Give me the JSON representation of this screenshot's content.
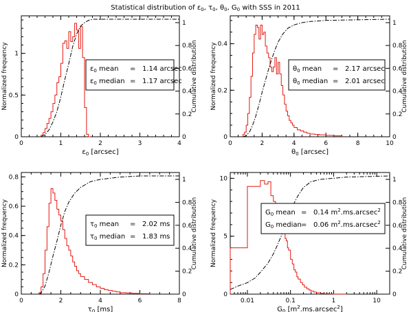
{
  "figure": {
    "title_parts": [
      "Statistical distribution of ε",
      "0",
      ", τ",
      "0",
      ", θ",
      "0",
      ", G",
      "0",
      " with SSS in 2011"
    ]
  },
  "chart_data": [
    {
      "type": "bar",
      "id": "eps",
      "xscale": "linear",
      "xlim": [
        0,
        4
      ],
      "ylim": [
        0,
        1.45
      ],
      "y2lim": [
        0,
        1.06
      ],
      "xticks": [
        0,
        1,
        2,
        3,
        4
      ],
      "xminor": 0.2,
      "yticks": [
        0,
        0.5,
        1
      ],
      "yminor": 0.1,
      "y2ticks": [
        0,
        0.2,
        0.4,
        0.6,
        0.8,
        1
      ],
      "xlabel": {
        "main": "ε",
        "sub": "0",
        "rest": " [arcsec]"
      },
      "ylabel": "Normalized frequency",
      "y2label": "Cumulative distribution",
      "legend_position": "right",
      "stats": [
        {
          "sym": "ε",
          "sub": "0",
          "label": "mean",
          "eq": "=",
          "value": "1.14 arcsec"
        },
        {
          "sym": "ε",
          "sub": "0",
          "label": "median",
          "eq": "=",
          "value": "1.17 arcsec"
        }
      ],
      "hist": {
        "x": [
          0.5,
          0.55,
          0.6,
          0.65,
          0.7,
          0.75,
          0.8,
          0.85,
          0.9,
          0.95,
          1.0,
          1.05,
          1.1,
          1.15,
          1.2,
          1.25,
          1.3,
          1.35,
          1.4,
          1.45,
          1.5,
          1.55,
          1.6,
          1.65,
          1.7,
          1.75
        ],
        "values": [
          0.02,
          0.05,
          0.1,
          0.16,
          0.22,
          0.3,
          0.4,
          0.5,
          0.65,
          0.72,
          0.88,
          1.12,
          1.15,
          1.06,
          1.26,
          1.14,
          1.2,
          1.36,
          1.28,
          1.06,
          1.32,
          0.95,
          0.35,
          0.03,
          0.0,
          0.0
        ]
      },
      "cdf": {
        "x": [
          0.5,
          0.6,
          0.7,
          0.8,
          0.9,
          1.0,
          1.1,
          1.2,
          1.3,
          1.4,
          1.5,
          1.6,
          1.7,
          1.8,
          2.0,
          4.0
        ],
        "values": [
          0.0,
          0.02,
          0.06,
          0.13,
          0.22,
          0.35,
          0.5,
          0.64,
          0.79,
          0.9,
          0.97,
          1.0,
          1.02,
          1.03,
          1.03,
          1.03
        ]
      }
    },
    {
      "type": "bar",
      "id": "theta",
      "xscale": "linear",
      "xlim": [
        0,
        10
      ],
      "ylim": [
        0,
        0.52
      ],
      "y2lim": [
        0,
        1.06
      ],
      "xticks": [
        0,
        2,
        4,
        6,
        8,
        10
      ],
      "xminor": 0.5,
      "yticks": [
        0,
        0.2,
        0.4
      ],
      "yminor": 0.05,
      "y2ticks": [
        0,
        0.2,
        0.4,
        0.6,
        0.8,
        1
      ],
      "xlabel": {
        "main": "θ",
        "sub": "0",
        "rest": " [arcsec]"
      },
      "ylabel": "Normalized frequency",
      "y2label": "Cumulative distribution",
      "legend_position": "right",
      "stats": [
        {
          "sym": "θ",
          "sub": "0",
          "label": "mean",
          "eq": "=",
          "value": "2.17 arcsec"
        },
        {
          "sym": "θ",
          "sub": "0",
          "label": "median",
          "eq": "=",
          "value": "2.01 arcsec"
        }
      ],
      "hist": {
        "x": [
          0.8,
          0.9,
          1.0,
          1.1,
          1.2,
          1.3,
          1.4,
          1.5,
          1.6,
          1.7,
          1.8,
          1.9,
          2.0,
          2.1,
          2.2,
          2.3,
          2.4,
          2.5,
          2.6,
          2.7,
          2.8,
          2.9,
          3.0,
          3.1,
          3.2,
          3.3,
          3.4,
          3.5,
          3.6,
          3.7,
          3.8,
          3.9,
          4.0,
          4.2,
          4.4,
          4.6,
          4.8,
          5.0,
          5.3,
          5.6,
          6.0,
          6.5,
          7.0
        ],
        "values": [
          0.01,
          0.02,
          0.05,
          0.1,
          0.17,
          0.26,
          0.36,
          0.44,
          0.48,
          0.47,
          0.42,
          0.48,
          0.44,
          0.45,
          0.39,
          0.36,
          0.34,
          0.3,
          0.28,
          0.3,
          0.34,
          0.27,
          0.32,
          0.27,
          0.22,
          0.18,
          0.14,
          0.11,
          0.09,
          0.07,
          0.06,
          0.05,
          0.04,
          0.03,
          0.025,
          0.02,
          0.015,
          0.012,
          0.01,
          0.008,
          0.006,
          0.004,
          0.0
        ]
      },
      "cdf": {
        "x": [
          0.8,
          1.0,
          1.2,
          1.4,
          1.6,
          1.8,
          2.0,
          2.2,
          2.4,
          2.6,
          2.8,
          3.0,
          3.3,
          3.6,
          4.0,
          4.5,
          5.0,
          6.0,
          10.0
        ],
        "values": [
          0.0,
          0.01,
          0.04,
          0.1,
          0.18,
          0.28,
          0.39,
          0.49,
          0.59,
          0.68,
          0.76,
          0.83,
          0.9,
          0.95,
          0.98,
          1.0,
          1.01,
          1.02,
          1.03
        ]
      }
    },
    {
      "type": "bar",
      "id": "tau",
      "xscale": "linear",
      "xlim": [
        0,
        8
      ],
      "ylim": [
        0,
        0.83
      ],
      "y2lim": [
        0,
        1.06
      ],
      "xticks": [
        0,
        2,
        4,
        6,
        8
      ],
      "xminor": 0.5,
      "yticks": [
        0,
        0.2,
        0.4,
        0.6,
        0.8
      ],
      "yminor": 0.05,
      "y2ticks": [
        0,
        0.2,
        0.4,
        0.6,
        0.8,
        1
      ],
      "xlabel": {
        "main": "τ",
        "sub": "0",
        "rest": " [ms]"
      },
      "ylabel": "Normalized frequency",
      "y2label": "Cumulative distribution",
      "legend_position": "right",
      "stats": [
        {
          "sym": "τ",
          "sub": "0",
          "label": "mean",
          "eq": "=",
          "value": "2.02 ms"
        },
        {
          "sym": "τ",
          "sub": "0",
          "label": "median",
          "eq": "=",
          "value": "1.83 ms"
        }
      ],
      "hist": {
        "x": [
          0.9,
          1.0,
          1.1,
          1.2,
          1.3,
          1.4,
          1.5,
          1.6,
          1.7,
          1.8,
          1.9,
          2.0,
          2.1,
          2.2,
          2.3,
          2.4,
          2.5,
          2.6,
          2.7,
          2.8,
          2.9,
          3.0,
          3.2,
          3.4,
          3.6,
          3.8,
          4.0,
          4.2,
          4.4,
          4.6,
          4.8,
          5.0,
          5.3,
          5.6,
          6.0,
          6.5
        ],
        "values": [
          0.01,
          0.05,
          0.14,
          0.3,
          0.46,
          0.62,
          0.72,
          0.69,
          0.64,
          0.58,
          0.54,
          0.5,
          0.44,
          0.38,
          0.33,
          0.3,
          0.26,
          0.22,
          0.19,
          0.16,
          0.14,
          0.12,
          0.1,
          0.08,
          0.065,
          0.05,
          0.04,
          0.03,
          0.025,
          0.02,
          0.015,
          0.01,
          0.008,
          0.005,
          0.003,
          0.0
        ]
      },
      "cdf": {
        "x": [
          0.9,
          1.0,
          1.2,
          1.4,
          1.6,
          1.8,
          2.0,
          2.2,
          2.4,
          2.7,
          3.0,
          3.5,
          4.0,
          5.0,
          6.0,
          8.0
        ],
        "values": [
          0.0,
          0.01,
          0.07,
          0.19,
          0.33,
          0.46,
          0.6,
          0.72,
          0.8,
          0.88,
          0.93,
          0.98,
          1.0,
          1.02,
          1.03,
          1.03
        ]
      }
    },
    {
      "type": "bar",
      "id": "g0",
      "xscale": "log",
      "xlim": [
        0.004,
        20
      ],
      "ylim": [
        0,
        10.5
      ],
      "y2lim": [
        0,
        1.06
      ],
      "xticks": [
        0.01,
        0.1,
        1,
        10
      ],
      "xtick_labels": [
        "0.01",
        "0.1",
        "1",
        "10"
      ],
      "yticks": [
        0,
        5,
        10
      ],
      "yminor": 1,
      "y2ticks": [
        0,
        0.2,
        0.4,
        0.6,
        0.8,
        1
      ],
      "xlabel": {
        "main": "G",
        "sub": "0",
        "rest": " [m",
        "sup": "2",
        "rest2": ".ms.arcsec",
        "sup2": "2",
        "rest3": "]"
      },
      "ylabel": "Normalized frequency",
      "y2label": "Cumulative distribution",
      "legend_position": "right",
      "stats": [
        {
          "sym": "G",
          "sub": "0",
          "label": "mean",
          "eq": "=",
          "value": "0.14 m",
          "sup": "2",
          "value2": ".ms.arcsec",
          "sup2": "2"
        },
        {
          "sym": "G",
          "sub": "0",
          "label": "median",
          "eq": "=",
          "value": "0.06 m",
          "sup": "2",
          "value2": ".ms.arcsec",
          "sup2": "2"
        }
      ],
      "hist": {
        "x": [
          0.004,
          0.01,
          0.02,
          0.025,
          0.03,
          0.035,
          0.04,
          0.045,
          0.05,
          0.055,
          0.06,
          0.065,
          0.07,
          0.075,
          0.08,
          0.085,
          0.09,
          0.1,
          0.11,
          0.12,
          0.13,
          0.14,
          0.15,
          0.17,
          0.19,
          0.21,
          0.24,
          0.27,
          0.3,
          0.35,
          0.4,
          0.5,
          0.6,
          0.8,
          1.0,
          1.5,
          2.0
        ],
        "values": [
          4.0,
          9.3,
          9.8,
          9.5,
          9.7,
          8.5,
          8.0,
          6.8,
          7.0,
          6.2,
          6.0,
          5.5,
          5.4,
          4.8,
          4.6,
          4.0,
          3.8,
          3.0,
          2.6,
          2.1,
          1.9,
          1.5,
          1.3,
          1.0,
          0.8,
          0.6,
          0.45,
          0.35,
          0.25,
          0.18,
          0.12,
          0.07,
          0.04,
          0.02,
          0.01,
          0.005,
          0.0
        ]
      },
      "cdf": {
        "x": [
          0.004,
          0.006,
          0.01,
          0.015,
          0.02,
          0.03,
          0.04,
          0.05,
          0.06,
          0.07,
          0.08,
          0.1,
          0.12,
          0.15,
          0.2,
          0.3,
          0.5,
          1.0,
          2.0,
          20.0
        ],
        "values": [
          0.04,
          0.07,
          0.1,
          0.14,
          0.19,
          0.27,
          0.35,
          0.43,
          0.5,
          0.57,
          0.63,
          0.72,
          0.79,
          0.86,
          0.93,
          0.98,
          1.0,
          1.01,
          1.02,
          1.03
        ]
      }
    }
  ]
}
